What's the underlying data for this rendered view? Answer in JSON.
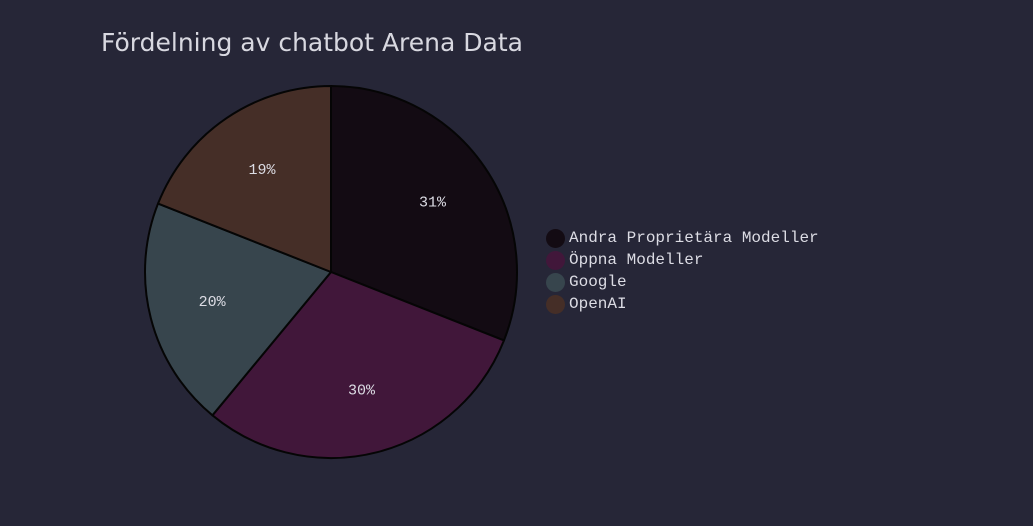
{
  "chart_data": {
    "type": "pie",
    "title": "Fördelning av chatbot Arena Data",
    "slices": [
      {
        "name": "Andra Proprietära Modeller",
        "value": 31,
        "label": "31%",
        "color": "#130b13"
      },
      {
        "name": "Öppna Modeller",
        "value": 30,
        "label": "30%",
        "color": "#41173a"
      },
      {
        "name": "Google",
        "value": 20,
        "label": "20%",
        "color": "#37454d"
      },
      {
        "name": "OpenAI",
        "value": 19,
        "label": "19%",
        "color": "#452e27"
      }
    ],
    "legend_position": "right",
    "slice_border_color": "#050505"
  },
  "colors": {
    "background": "#262637",
    "text": "#dcdce4"
  }
}
